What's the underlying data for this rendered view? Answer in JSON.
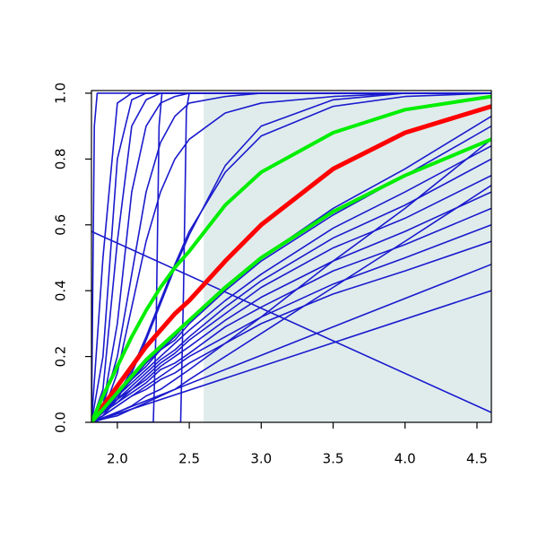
{
  "chart_data": {
    "type": "line",
    "xlim": [
      1.82,
      4.6
    ],
    "ylim": [
      0,
      1.008
    ],
    "xticks": [
      {
        "value": 2,
        "label": "2.0"
      },
      2.5,
      {
        "value": 3,
        "label": "3.0"
      },
      3.5,
      {
        "value": 4,
        "label": "4.0"
      },
      4.5
    ],
    "yticks": [
      {
        "value": 0,
        "label": "0.0"
      },
      0.2,
      0.4,
      0.6,
      0.8,
      {
        "value": 1,
        "label": "1.0"
      }
    ],
    "shade": {
      "x": [
        2.6,
        4.6
      ],
      "y": [
        0,
        1
      ],
      "color": "#e0ecec"
    },
    "x": [
      1.82,
      1.9,
      2.0,
      2.1,
      2.2,
      2.3,
      2.4,
      2.5,
      2.75,
      3.0,
      3.5,
      4.0,
      4.6
    ],
    "series": [
      {
        "color": "#1a1acd",
        "values": [
          0,
          0.5,
          0.97,
          1,
          1,
          1,
          1,
          1,
          1,
          1,
          1,
          1,
          1
        ]
      },
      {
        "color": "#1a1acd",
        "values": [
          0,
          0.2,
          0.8,
          0.98,
          1,
          1,
          1,
          1,
          1,
          1,
          1,
          1,
          1
        ]
      },
      {
        "color": "#1a1acd",
        "values": [
          0,
          0.1,
          0.55,
          0.9,
          0.98,
          1,
          1,
          1,
          1,
          1,
          1,
          1,
          1
        ]
      },
      {
        "color": "#1a1acd",
        "values": [
          0,
          0.05,
          0.3,
          0.7,
          0.9,
          0.97,
          0.99,
          1,
          1,
          1,
          1,
          1,
          1
        ]
      },
      {
        "color": "#1a1acd",
        "values": [
          0,
          0.05,
          0.2,
          0.45,
          0.7,
          0.85,
          0.93,
          0.97,
          0.99,
          1,
          1,
          1,
          1
        ]
      },
      {
        "color": "#1a1acd",
        "values": [
          0,
          0.03,
          0.15,
          0.35,
          0.55,
          0.7,
          0.8,
          0.86,
          0.94,
          0.97,
          0.99,
          1,
          1
        ]
      },
      {
        "color": "#1a1acd",
        "values": [
          0,
          0.02,
          0.08,
          0.16,
          0.26,
          0.37,
          0.48,
          0.58,
          0.76,
          0.87,
          0.96,
          0.99,
          1
        ]
      },
      {
        "color": "#1a1acd",
        "values": [
          0,
          0.02,
          0.07,
          0.15,
          0.25,
          0.36,
          0.47,
          0.57,
          0.78,
          0.9,
          0.98,
          1,
          1
        ]
      },
      {
        "color": "#1a1acd",
        "x": [
          1.82,
          1.84,
          1.86,
          4.6
        ],
        "values": [
          0,
          0.9,
          1,
          1
        ]
      },
      {
        "color": "#1a1acd",
        "x": [
          1.82,
          2.25,
          2.27,
          2.29,
          2.31,
          4.6
        ],
        "values": [
          0,
          0,
          0.3,
          0.9,
          1,
          1
        ]
      },
      {
        "color": "#1a1acd",
        "x": [
          1.82,
          2.44,
          2.46,
          2.48,
          2.5,
          4.6
        ],
        "values": [
          0,
          0,
          0.4,
          0.95,
          1,
          1
        ]
      },
      {
        "color": "#1a1acd",
        "x": [
          1.82,
          4.6
        ],
        "values": [
          0.58,
          0.03
        ]
      },
      {
        "color": "#1a1acd",
        "x": [
          1.82,
          4.6
        ],
        "values": [
          0,
          0.4
        ]
      },
      {
        "color": "#1a1acd",
        "x": [
          1.82,
          4.6
        ],
        "values": [
          0,
          0.48
        ]
      },
      {
        "color": "#1a1acd",
        "values": [
          0,
          0.04,
          0.08,
          0.13,
          0.18,
          0.22,
          0.26,
          0.31,
          0.41,
          0.5,
          0.65,
          0.77,
          0.93
        ]
      },
      {
        "color": "#1a1acd",
        "values": [
          0,
          0.04,
          0.08,
          0.13,
          0.17,
          0.22,
          0.25,
          0.3,
          0.4,
          0.49,
          0.63,
          0.75,
          0.9
        ]
      },
      {
        "color": "#1a1acd",
        "values": [
          0,
          0.03,
          0.08,
          0.12,
          0.16,
          0.2,
          0.24,
          0.28,
          0.37,
          0.45,
          0.59,
          0.7,
          0.84
        ]
      },
      {
        "color": "#1a1acd",
        "values": [
          0,
          0.03,
          0.07,
          0.11,
          0.15,
          0.19,
          0.22,
          0.26,
          0.35,
          0.43,
          0.56,
          0.66,
          0.8
        ]
      },
      {
        "color": "#1a1acd",
        "values": [
          0,
          0.03,
          0.07,
          0.1,
          0.14,
          0.18,
          0.21,
          0.25,
          0.33,
          0.41,
          0.53,
          0.62,
          0.75
        ]
      },
      {
        "color": "#1a1acd",
        "values": [
          0,
          0.03,
          0.06,
          0.1,
          0.13,
          0.17,
          0.2,
          0.23,
          0.31,
          0.38,
          0.49,
          0.58,
          0.7
        ]
      },
      {
        "color": "#1a1acd",
        "values": [
          0,
          0.03,
          0.06,
          0.09,
          0.12,
          0.16,
          0.18,
          0.21,
          0.29,
          0.35,
          0.46,
          0.54,
          0.65
        ]
      },
      {
        "color": "#1a1acd",
        "values": [
          0,
          0.02,
          0.05,
          0.08,
          0.11,
          0.14,
          0.17,
          0.2,
          0.26,
          0.32,
          0.42,
          0.5,
          0.6
        ]
      },
      {
        "color": "#1a1acd",
        "values": [
          0,
          0.02,
          0.05,
          0.08,
          0.1,
          0.13,
          0.15,
          0.18,
          0.24,
          0.3,
          0.39,
          0.46,
          0.55
        ]
      },
      {
        "color": "#1a1acd",
        "values": [
          0,
          0.01,
          0.03,
          0.05,
          0.08,
          0.1,
          0.13,
          0.16,
          0.24,
          0.32,
          0.49,
          0.65,
          0.86
        ]
      },
      {
        "color": "#1a1acd",
        "values": [
          0,
          0.01,
          0.02,
          0.04,
          0.06,
          0.08,
          0.1,
          0.13,
          0.2,
          0.27,
          0.41,
          0.55,
          0.72
        ]
      },
      {
        "color": "#ff0000",
        "line_width": 5,
        "values": [
          0,
          0.05,
          0.11,
          0.17,
          0.23,
          0.28,
          0.33,
          0.37,
          0.49,
          0.6,
          0.77,
          0.88,
          0.96
        ]
      },
      {
        "color": "#00ee00",
        "line_width": 4,
        "values": [
          0,
          0.08,
          0.17,
          0.26,
          0.34,
          0.41,
          0.47,
          0.52,
          0.66,
          0.76,
          0.88,
          0.95,
          0.99
        ]
      },
      {
        "color": "#00ee00",
        "line_width": 4,
        "values": [
          0,
          0.04,
          0.09,
          0.14,
          0.19,
          0.23,
          0.27,
          0.31,
          0.41,
          0.5,
          0.64,
          0.75,
          0.86
        ]
      }
    ]
  }
}
